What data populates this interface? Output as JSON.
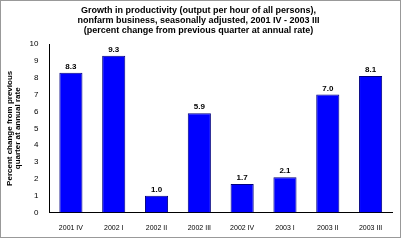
{
  "chart_data": {
    "type": "bar",
    "title": [
      "Growth in productivity (output per hour of all persons),",
      "nonfarm business, seasonally adjusted, 2001 IV - 2003 III",
      "(percent change from previous quarter at annual rate)"
    ],
    "y_label": [
      "Percent change from previous",
      "quarter at annual rate"
    ],
    "categories": [
      "2001 IV",
      "2002 I",
      "2002 II",
      "2002 III",
      "2002 IV",
      "2003 I",
      "2003 II",
      "2003 III"
    ],
    "values": [
      8.3,
      9.3,
      1.0,
      5.9,
      1.7,
      2.1,
      7.0,
      8.1
    ],
    "value_labels": [
      "8.3",
      "9.3",
      "1.0",
      "5.9",
      "1.7",
      "2.1",
      "7.0",
      "8.1"
    ],
    "color": "#0000ff",
    "ylim": [
      0,
      10
    ],
    "yticks": [
      0,
      1,
      2,
      3,
      4,
      5,
      6,
      7,
      8,
      9,
      10
    ],
    "grid": false,
    "data_labels": true
  }
}
